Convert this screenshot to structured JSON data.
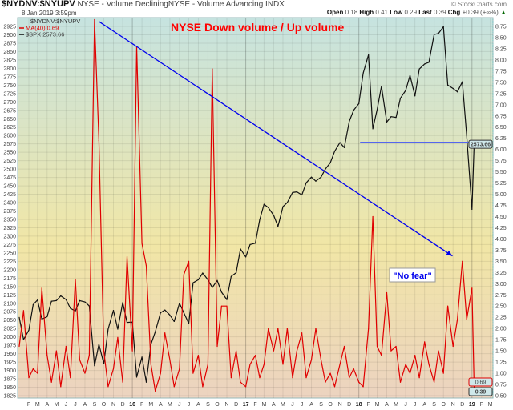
{
  "header": {
    "symbol": "$NYDNV:$NYUPV",
    "description": "NYSE - Volume DecliningNYSE - Volume Advancing INDX",
    "datetime": "8 Jan 2019 3:59pm",
    "brand": "© StockCharts.com",
    "ohlc": {
      "open_label": "Open",
      "open": "0.18",
      "high_label": "High",
      "high": "0.41",
      "low_label": "Low",
      "low": "0.29",
      "last_label": "Last",
      "last": "0.39",
      "chg_label": "Chg",
      "chg": "+0.39 (+∞%)"
    }
  },
  "legend": {
    "title": "$NYDNV:$NYUPV",
    "items": [
      "MA(40) 0.69",
      "$SPX 2573.66"
    ]
  },
  "colors": {
    "ratio": "#e00000",
    "spx": "#111111",
    "annotation": "#0000ee",
    "title": "#ff0000",
    "bg_top": "#c6e3e0",
    "bg_mid": "#f1e6a6",
    "bg_bottom": "#ecd3c0"
  },
  "chart_data": {
    "type": "line",
    "title": "NYSE Down volume / Up volume",
    "left_axis": {
      "ylim": [
        1825,
        2925
      ],
      "step": 25
    },
    "right_axis": {
      "ylim": [
        0.5,
        8.75
      ],
      "step": 0.25
    },
    "xtick_labels": [
      "F",
      "M",
      "A",
      "M",
      "J",
      "J",
      "A",
      "S",
      "O",
      "N",
      "D",
      "16",
      "F",
      "M",
      "A",
      "M",
      "J",
      "J",
      "A",
      "S",
      "O",
      "N",
      "D",
      "17",
      "F",
      "M",
      "A",
      "M",
      "J",
      "J",
      "A",
      "S",
      "O",
      "N",
      "D",
      "18",
      "F",
      "M",
      "A",
      "M",
      "J",
      "J",
      "A",
      "S",
      "O",
      "N",
      "D",
      "19",
      "F",
      "M"
    ],
    "grid": true,
    "legend_position": "top-left",
    "x": [
      "2015-01-01",
      "2015-01-15",
      "2015-02-01",
      "2015-02-15",
      "2015-03-01",
      "2015-03-15",
      "2015-04-01",
      "2015-04-15",
      "2015-05-01",
      "2015-05-15",
      "2015-06-01",
      "2015-06-15",
      "2015-07-01",
      "2015-07-15",
      "2015-08-01",
      "2015-08-15",
      "2015-09-01",
      "2015-09-15",
      "2015-10-01",
      "2015-10-15",
      "2015-11-01",
      "2015-11-15",
      "2015-12-01",
      "2015-12-15",
      "2016-01-01",
      "2016-01-15",
      "2016-02-01",
      "2016-02-15",
      "2016-03-01",
      "2016-03-15",
      "2016-04-01",
      "2016-04-15",
      "2016-05-01",
      "2016-05-15",
      "2016-06-01",
      "2016-06-15",
      "2016-07-01",
      "2016-07-15",
      "2016-08-01",
      "2016-08-15",
      "2016-09-01",
      "2016-09-15",
      "2016-10-01",
      "2016-10-15",
      "2016-11-01",
      "2016-11-15",
      "2016-12-01",
      "2016-12-15",
      "2017-01-01",
      "2017-01-15",
      "2017-02-01",
      "2017-02-15",
      "2017-03-01",
      "2017-03-15",
      "2017-04-01",
      "2017-04-15",
      "2017-05-01",
      "2017-05-15",
      "2017-06-01",
      "2017-06-15",
      "2017-07-01",
      "2017-07-15",
      "2017-08-01",
      "2017-08-15",
      "2017-09-01",
      "2017-09-15",
      "2017-10-01",
      "2017-10-15",
      "2017-11-01",
      "2017-11-15",
      "2017-12-01",
      "2017-12-15",
      "2018-01-01",
      "2018-01-15",
      "2018-02-01",
      "2018-02-15",
      "2018-03-01",
      "2018-03-15",
      "2018-04-01",
      "2018-04-15",
      "2018-05-01",
      "2018-05-15",
      "2018-06-01",
      "2018-06-15",
      "2018-07-01",
      "2018-07-15",
      "2018-08-01",
      "2018-08-15",
      "2018-09-01",
      "2018-09-15",
      "2018-10-01",
      "2018-10-15",
      "2018-11-01",
      "2018-11-15",
      "2018-12-01",
      "2018-12-15",
      "2019-01-01",
      "2019-01-08"
    ],
    "series": [
      {
        "name": "MA(40)",
        "axis": "right",
        "color": "#e00000",
        "values": [
          1.6,
          2.4,
          0.9,
          1.1,
          1.0,
          2.9,
          1.4,
          0.8,
          1.5,
          0.7,
          1.6,
          0.9,
          3.1,
          1.3,
          1.0,
          1.4,
          8.9,
          6.2,
          1.5,
          0.7,
          1.1,
          1.8,
          0.8,
          3.6,
          1.5,
          8.3,
          3.9,
          3.4,
          1.2,
          0.6,
          1.0,
          1.9,
          1.3,
          0.7,
          1.1,
          3.2,
          3.5,
          1.0,
          1.4,
          0.7,
          1.2,
          7.8,
          1.6,
          2.5,
          2.5,
          0.9,
          1.5,
          0.8,
          0.7,
          1.2,
          1.4,
          0.9,
          1.2,
          2.0,
          1.5,
          2.0,
          1.2,
          2.0,
          0.9,
          1.5,
          1.9,
          0.9,
          1.3,
          2.0,
          1.3,
          0.8,
          1.0,
          0.7,
          1.2,
          1.6,
          0.9,
          1.1,
          0.8,
          0.7,
          2.0,
          4.5,
          1.6,
          1.4,
          2.8,
          1.5,
          1.6,
          0.8,
          1.2,
          1.0,
          1.4,
          0.9,
          1.7,
          1.2,
          0.8,
          1.5,
          1.0,
          2.5,
          1.6,
          2.2,
          3.5,
          2.2,
          2.9,
          0.69
        ]
      },
      {
        "name": "$SPX",
        "axis": "left",
        "color": "#111111",
        "values": [
          2058,
          1992,
          2020,
          2096,
          2110,
          2053,
          2060,
          2106,
          2108,
          2122,
          2111,
          2085,
          2077,
          2108,
          2104,
          2092,
          1914,
          1978,
          1920,
          2023,
          2079,
          2023,
          2102,
          2043,
          2044,
          1880,
          1940,
          1865,
          1978,
          2015,
          2072,
          2080,
          2065,
          2046,
          2100,
          2072,
          2040,
          2161,
          2170,
          2190,
          2170,
          2147,
          2168,
          2133,
          2111,
          2180,
          2191,
          2262,
          2238,
          2275,
          2279,
          2349,
          2395,
          2385,
          2362,
          2329,
          2388,
          2400,
          2430,
          2432,
          2423,
          2459,
          2476,
          2464,
          2476,
          2500,
          2519,
          2553,
          2579,
          2564,
          2642,
          2675,
          2695,
          2786,
          2840,
          2620,
          2677,
          2747,
          2640,
          2656,
          2654,
          2711,
          2734,
          2779,
          2718,
          2798,
          2813,
          2818,
          2901,
          2904,
          2924,
          2750,
          2740,
          2730,
          2760,
          2600,
          2380,
          2574
        ]
      }
    ],
    "annotations": {
      "trend_line": {
        "from": [
          "2015-09-15",
          8.86
        ],
        "to": [
          "2018-10-30",
          3.62
        ],
        "axis": "right"
      },
      "support_line": {
        "value": 2580,
        "from": "2018-01-05",
        "to": "2019-01-10",
        "axis": "left"
      },
      "callout": "\"No fear\""
    },
    "axis_tags": {
      "spx": "2573.66",
      "ma": "0.69",
      "last": "0.39"
    }
  }
}
